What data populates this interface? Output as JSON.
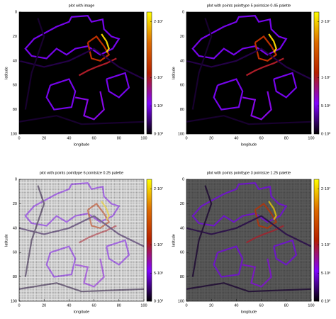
{
  "chart_data": [
    {
      "type": "heatmap",
      "title": "plot with image",
      "x_label": "longitude",
      "y_label": "latitude",
      "xlim": [
        0,
        100
      ],
      "ylim": [
        100,
        0
      ],
      "xticks": [
        0,
        20,
        40,
        60,
        80,
        100
      ],
      "yticks": [
        0,
        20,
        40,
        60,
        80,
        100
      ],
      "cblim": [
        0,
        21700000
      ],
      "cbticks": [
        {
          "value": 0,
          "label": "0·10⁰"
        },
        {
          "value": 5000000,
          "label": "5·10⁶"
        },
        {
          "value": 10000000,
          "label": "1·10⁷"
        },
        {
          "value": 20000000,
          "label": "2·10⁷"
        }
      ],
      "palette": [
        "#000000",
        "#8004ff",
        "#b52000",
        "#dd6b00",
        "#ffff00"
      ],
      "background": "#000000",
      "point_grid": false,
      "opacity": 1,
      "traces": [
        {
          "x": [
            30,
            40,
            42,
            55,
            58,
            67,
            68,
            74,
            80,
            75,
            65,
            55,
            45,
            38,
            30,
            22,
            10,
            5,
            12,
            30
          ],
          "y": [
            12,
            8,
            4,
            3,
            8,
            6,
            14,
            20,
            22,
            30,
            35,
            28,
            30,
            35,
            30,
            38,
            36,
            30,
            22,
            12
          ],
          "value": 5000000
        },
        {
          "x": [
            55,
            62,
            68,
            72,
            65,
            58,
            55
          ],
          "y": [
            25,
            20,
            28,
            35,
            40,
            38,
            25
          ],
          "value": 12000000
        },
        {
          "x": [
            66,
            70,
            72,
            70
          ],
          "y": [
            18,
            24,
            30,
            33
          ],
          "value": 20000000
        },
        {
          "x": [
            48,
            55,
            62,
            70,
            78
          ],
          "y": [
            52,
            48,
            45,
            42,
            38
          ],
          "value": 10000000
        },
        {
          "x": [
            25,
            40,
            45,
            42,
            28,
            22,
            25
          ],
          "y": [
            60,
            55,
            65,
            78,
            80,
            70,
            60
          ],
          "value": 5000000
        },
        {
          "x": [
            45,
            55,
            52,
            60,
            68,
            65
          ],
          "y": [
            70,
            72,
            85,
            88,
            80,
            65
          ],
          "value": 6000000
        },
        {
          "x": [
            70,
            85,
            88,
            80,
            72,
            70
          ],
          "y": [
            55,
            50,
            62,
            70,
            65,
            55
          ],
          "value": 5000000
        },
        {
          "x": [
            0,
            20,
            40,
            60,
            80,
            100
          ],
          "y": [
            40,
            45,
            40,
            30,
            45,
            55
          ],
          "value": 1500000
        },
        {
          "x": [
            0,
            30,
            50,
            100
          ],
          "y": [
            90,
            85,
            92,
            90
          ],
          "value": 1000000
        },
        {
          "x": [
            15,
            20,
            10,
            5
          ],
          "y": [
            5,
            20,
            50,
            80
          ],
          "value": 1000000
        }
      ]
    },
    {
      "type": "heatmap",
      "title": "plot with points pointtype 5 pointsize 0.45 palette",
      "x_label": "longitude",
      "y_label": "latitude",
      "xlim": [
        0,
        100
      ],
      "ylim": [
        100,
        0
      ],
      "xticks": [
        0,
        20,
        40,
        60,
        80,
        100
      ],
      "yticks": [
        0,
        20,
        40,
        60,
        80,
        100
      ],
      "cblim": [
        0,
        21700000
      ],
      "cbticks": [
        {
          "value": 0,
          "label": "0·10⁰"
        },
        {
          "value": 5000000,
          "label": "5·10⁶"
        },
        {
          "value": 10000000,
          "label": "1·10⁷"
        },
        {
          "value": 20000000,
          "label": "2·10⁷"
        }
      ],
      "background": "#000000",
      "point_grid": false,
      "opacity": 1
    },
    {
      "type": "heatmap",
      "title": "plot with points pointtype 6 pointsize 0.25 palette",
      "x_label": "longitude",
      "y_label": "latitude",
      "xlim": [
        0,
        100
      ],
      "ylim": [
        100,
        0
      ],
      "xticks": [
        0,
        20,
        40,
        60,
        80,
        100
      ],
      "yticks": [
        0,
        20,
        40,
        60,
        80,
        100
      ],
      "cblim": [
        0,
        21700000
      ],
      "cbticks": [
        {
          "value": 0,
          "label": "0·10⁰"
        },
        {
          "value": 5000000,
          "label": "5·10⁶"
        },
        {
          "value": 10000000,
          "label": "1·10⁷"
        },
        {
          "value": 20000000,
          "label": "2·10⁷"
        }
      ],
      "background": "#e4e4e4",
      "point_grid": true,
      "opacity": 0.5
    },
    {
      "type": "heatmap",
      "title": "plot with points pointtype 3 pointsize 1.25 palette",
      "x_label": "longitude",
      "y_label": "latitude",
      "xlim": [
        0,
        100
      ],
      "ylim": [
        100,
        0
      ],
      "xticks": [
        0,
        20,
        40,
        60,
        80,
        100
      ],
      "yticks": [
        0,
        20,
        40,
        60,
        80,
        100
      ],
      "cblim": [
        0,
        21700000
      ],
      "cbticks": [
        {
          "value": 0,
          "label": "0·10⁰"
        },
        {
          "value": 5000000,
          "label": "5·10⁶"
        },
        {
          "value": 10000000,
          "label": "1·10⁷"
        },
        {
          "value": 20000000,
          "label": "2·10⁷"
        }
      ],
      "background": "#5a5a5a",
      "point_grid": true,
      "opacity": 0.75
    }
  ]
}
